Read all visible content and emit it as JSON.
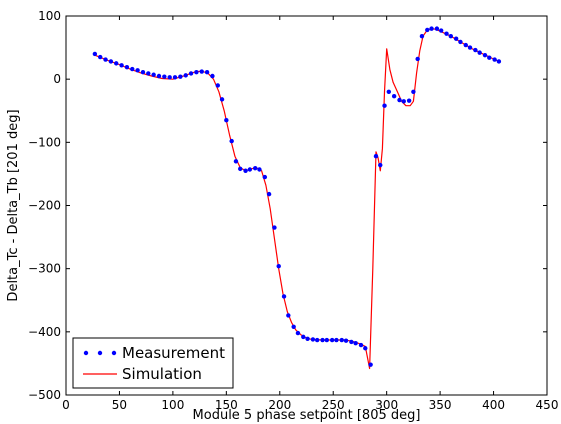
{
  "chart_data": {
    "type": "line",
    "title": "",
    "xlabel": "Module 5 phase setpoint [805 deg]",
    "ylabel": "Delta_Tc - Delta_Tb [201 deg]",
    "xlim": [
      0,
      450
    ],
    "ylim": [
      -500,
      100
    ],
    "xticks": [
      0,
      50,
      100,
      150,
      200,
      250,
      300,
      350,
      400,
      450
    ],
    "yticks": [
      -500,
      -400,
      -300,
      -200,
      -100,
      0,
      100
    ],
    "grid": false,
    "legend_position": "lower-left",
    "series": [
      {
        "name": "Measurement",
        "style": "markers",
        "color": "#0000ff",
        "x": [
          27,
          32,
          37,
          42,
          47,
          52,
          57,
          62,
          67,
          72,
          77,
          82,
          87,
          92,
          97,
          102,
          107,
          112,
          117,
          122,
          127,
          132,
          137,
          142,
          146,
          150,
          155,
          159,
          163,
          168,
          172,
          177,
          181,
          186,
          190,
          195,
          199,
          204,
          208,
          213,
          217,
          222,
          226,
          231,
          235,
          240,
          244,
          249,
          253,
          258,
          262,
          267,
          271,
          276,
          280,
          285,
          290,
          294,
          298,
          302,
          307,
          312,
          316,
          321,
          325,
          329,
          333,
          338,
          342,
          347,
          351,
          356,
          360,
          365,
          369,
          374,
          378,
          383,
          387,
          392,
          396,
          401,
          405
        ],
        "y": [
          40,
          35,
          31,
          28,
          25,
          22,
          19,
          16,
          14,
          11,
          9,
          7,
          5,
          4,
          3,
          3,
          4,
          6,
          9,
          11,
          12,
          11,
          5,
          -10,
          -32,
          -65,
          -98,
          -130,
          -142,
          -145,
          -143,
          -141,
          -143,
          -155,
          -182,
          -235,
          -296,
          -344,
          -374,
          -392,
          -402,
          -408,
          -411,
          -412,
          -413,
          -413,
          -413,
          -413,
          -413,
          -413,
          -414,
          -416,
          -418,
          -421,
          -426,
          -452,
          -122,
          -136,
          -42,
          -20,
          -27,
          -33,
          -35,
          -34,
          -20,
          32,
          68,
          78,
          80,
          80,
          77,
          72,
          68,
          64,
          59,
          54,
          50,
          46,
          42,
          38,
          34,
          31,
          28
        ]
      },
      {
        "name": "Simulation",
        "style": "line",
        "color": "#ff0000",
        "x": [
          27,
          40,
          50,
          60,
          70,
          80,
          90,
          100,
          110,
          120,
          127,
          133,
          138,
          143,
          148,
          153,
          158,
          163,
          168,
          173,
          178,
          183,
          187,
          191,
          195,
          199,
          203,
          207,
          211,
          215,
          220,
          225,
          230,
          240,
          250,
          260,
          265,
          270,
          275,
          280,
          284,
          287,
          290,
          292,
          294,
          296,
          298,
          300,
          303,
          306,
          310,
          314,
          318,
          322,
          325,
          328,
          331,
          334,
          338,
          342,
          346,
          350,
          360,
          370,
          380,
          390,
          400,
          405
        ],
        "y": [
          38,
          29,
          23,
          16,
          10,
          5,
          1,
          0,
          5,
          11,
          13,
          9,
          0,
          -20,
          -50,
          -88,
          -122,
          -140,
          -145,
          -142,
          -140,
          -145,
          -168,
          -205,
          -252,
          -300,
          -340,
          -368,
          -385,
          -397,
          -405,
          -410,
          -412,
          -413,
          -413,
          -413,
          -414,
          -416,
          -419,
          -423,
          -458,
          -300,
          -115,
          -125,
          -145,
          -110,
          -20,
          48,
          15,
          -5,
          -20,
          -35,
          -42,
          -42,
          -35,
          10,
          45,
          68,
          78,
          80,
          79,
          76,
          68,
          58,
          48,
          40,
          32,
          28
        ]
      }
    ]
  }
}
